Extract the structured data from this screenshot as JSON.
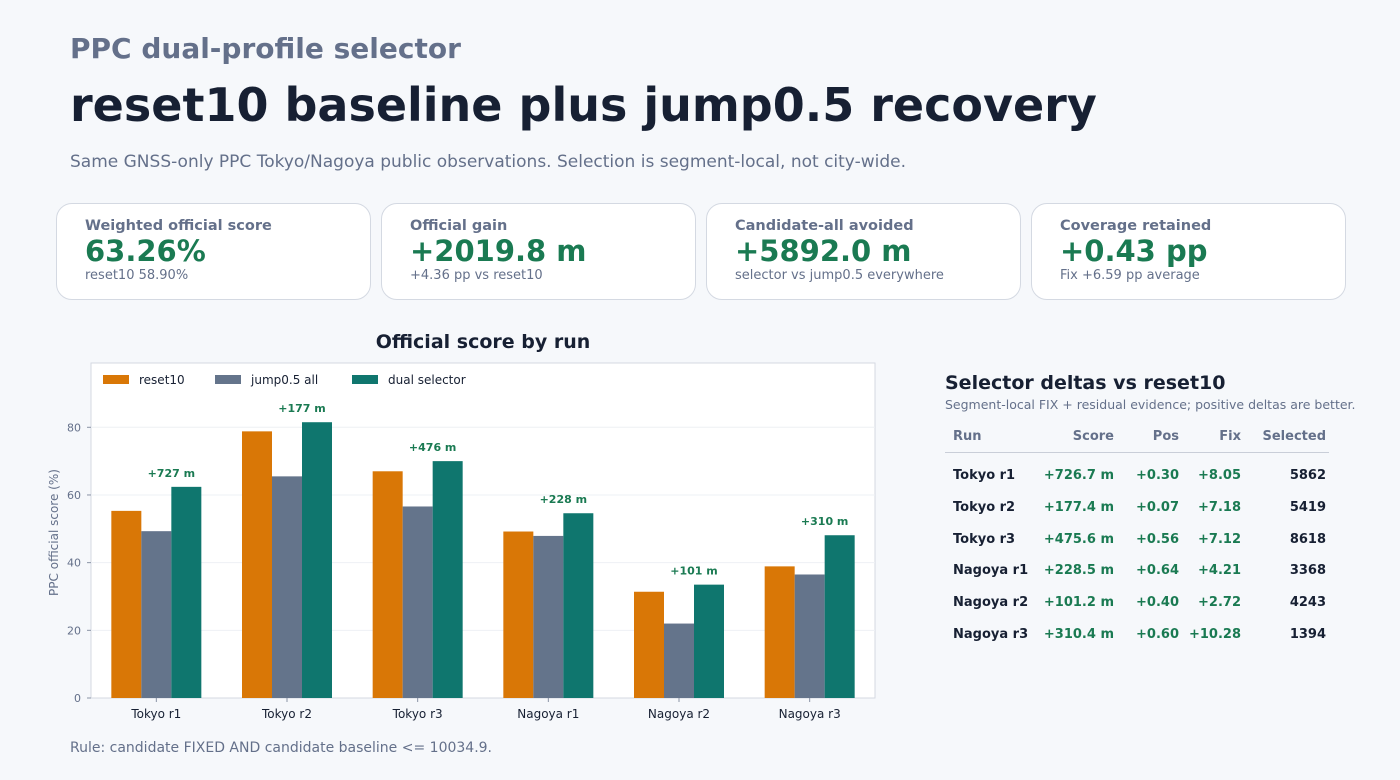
{
  "header": {
    "eyebrow": "PPC dual-profile selector",
    "title": "reset10 baseline plus jump0.5 recovery",
    "subtitle": "Same GNSS-only PPC Tokyo/Nagoya public observations. Selection is segment-local, not city-wide."
  },
  "cards": [
    {
      "label": "Weighted official score",
      "value": "63.26%",
      "note": "reset10 58.90%"
    },
    {
      "label": "Official gain",
      "value": "+2019.8 m",
      "note": "+4.36 pp vs reset10"
    },
    {
      "label": "Candidate-all avoided",
      "value": "+5892.0 m",
      "note": "selector vs jump0.5 everywhere"
    },
    {
      "label": "Coverage retained",
      "value": "+0.43 pp",
      "note": "Fix +6.59 pp average"
    }
  ],
  "colors": {
    "reset10": "#d97706",
    "jump": "#64748b",
    "selector": "#0f766e",
    "positive": "#1a7a52"
  },
  "chart_data": {
    "type": "bar",
    "title": "Official score by run",
    "xlabel": "",
    "ylabel": "PPC official score (%)",
    "ylim": [
      0,
      99
    ],
    "yticks": [
      0,
      20,
      40,
      60,
      80
    ],
    "grid": true,
    "legend_position": "top-left",
    "categories": [
      "Tokyo r1",
      "Tokyo r2",
      "Tokyo r3",
      "Nagoya r1",
      "Nagoya r2",
      "Nagoya r3"
    ],
    "series": [
      {
        "name": "reset10",
        "color": "#d97706",
        "values": [
          55.3,
          78.8,
          67.0,
          49.2,
          31.4,
          38.9
        ]
      },
      {
        "name": "jump0.5 all",
        "color": "#64748b",
        "values": [
          49.3,
          65.5,
          56.6,
          47.9,
          22.0,
          36.5
        ]
      },
      {
        "name": "dual selector",
        "color": "#0f766e",
        "values": [
          62.4,
          81.5,
          70.0,
          54.6,
          33.5,
          48.1
        ]
      }
    ],
    "annotations": [
      "+727 m",
      "+177 m",
      "+476 m",
      "+228 m",
      "+101 m",
      "+310 m"
    ]
  },
  "table": {
    "title": "Selector deltas vs reset10",
    "subtitle": "Segment-local FIX + residual evidence; positive deltas are better.",
    "headers": {
      "run": "Run",
      "score": "Score",
      "pos": "Pos",
      "fix": "Fix",
      "selected": "Selected"
    },
    "rows": [
      {
        "run": "Tokyo r1",
        "score": "+726.7 m",
        "pos": "+0.30",
        "fix": "+8.05",
        "selected": "5862"
      },
      {
        "run": "Tokyo r2",
        "score": "+177.4 m",
        "pos": "+0.07",
        "fix": "+7.18",
        "selected": "5419"
      },
      {
        "run": "Tokyo r3",
        "score": "+475.6 m",
        "pos": "+0.56",
        "fix": "+7.12",
        "selected": "8618"
      },
      {
        "run": "Nagoya r1",
        "score": "+228.5 m",
        "pos": "+0.64",
        "fix": "+4.21",
        "selected": "3368"
      },
      {
        "run": "Nagoya r2",
        "score": "+101.2 m",
        "pos": "+0.40",
        "fix": "+2.72",
        "selected": "4243"
      },
      {
        "run": "Nagoya r3",
        "score": "+310.4 m",
        "pos": "+0.60",
        "fix": "+10.28",
        "selected": "1394"
      }
    ]
  },
  "footer": {
    "rule": "Rule: candidate FIXED AND candidate baseline <= 10034.9."
  }
}
